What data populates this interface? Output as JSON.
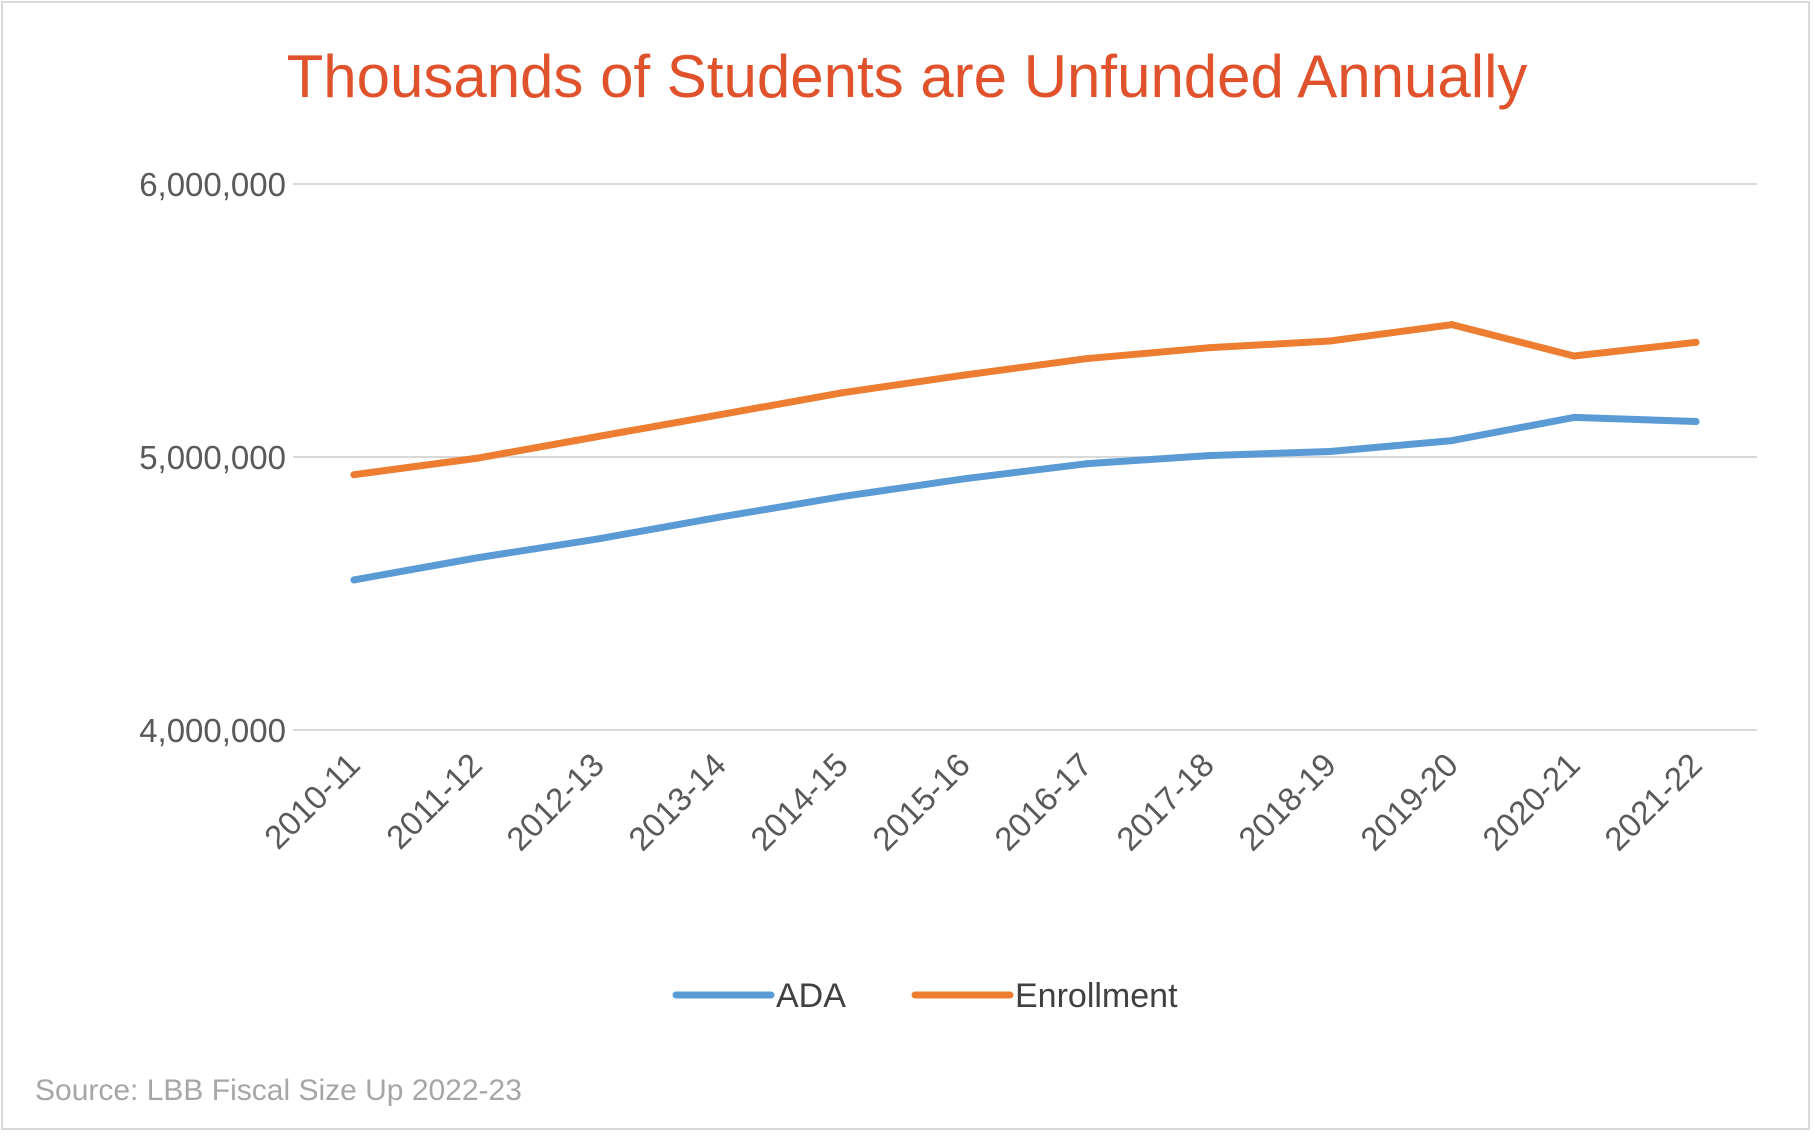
{
  "chart_data": {
    "type": "line",
    "title": "Thousands of Students are Unfunded Annually",
    "xlabel": "",
    "ylabel": "",
    "categories": [
      "2010-11",
      "2011-12",
      "2012-13",
      "2013-14",
      "2014-15",
      "2015-16",
      "2016-17",
      "2017-18",
      "2018-19",
      "2019-20",
      "2020-21",
      "2021-22"
    ],
    "series": [
      {
        "name": "ADA",
        "color": "#5b9bd5",
        "values": [
          4550000,
          4630000,
          4700000,
          4780000,
          4855000,
          4920000,
          4975000,
          5005000,
          5020000,
          5060000,
          5145000,
          5130000
        ]
      },
      {
        "name": "Enrollment",
        "color": "#ed7d31",
        "values": [
          4935000,
          4995000,
          5075000,
          5155000,
          5235000,
          5300000,
          5360000,
          5400000,
          5425000,
          5485000,
          5370000,
          5420000
        ]
      }
    ],
    "ylim": [
      4000000,
      6000000
    ],
    "yticks": [
      4000000,
      5000000,
      6000000
    ],
    "ytick_labels": [
      "4,000,000",
      "5,000,000",
      "6,000,000"
    ],
    "grid": true,
    "legend_position": "bottom"
  },
  "source_note": "Source: LBB Fiscal Size Up 2022-23",
  "colors": {
    "title": "#e0522c",
    "axis_text": "#595959",
    "gridline": "#d9d9d9",
    "source_text": "#a6a6a6"
  }
}
